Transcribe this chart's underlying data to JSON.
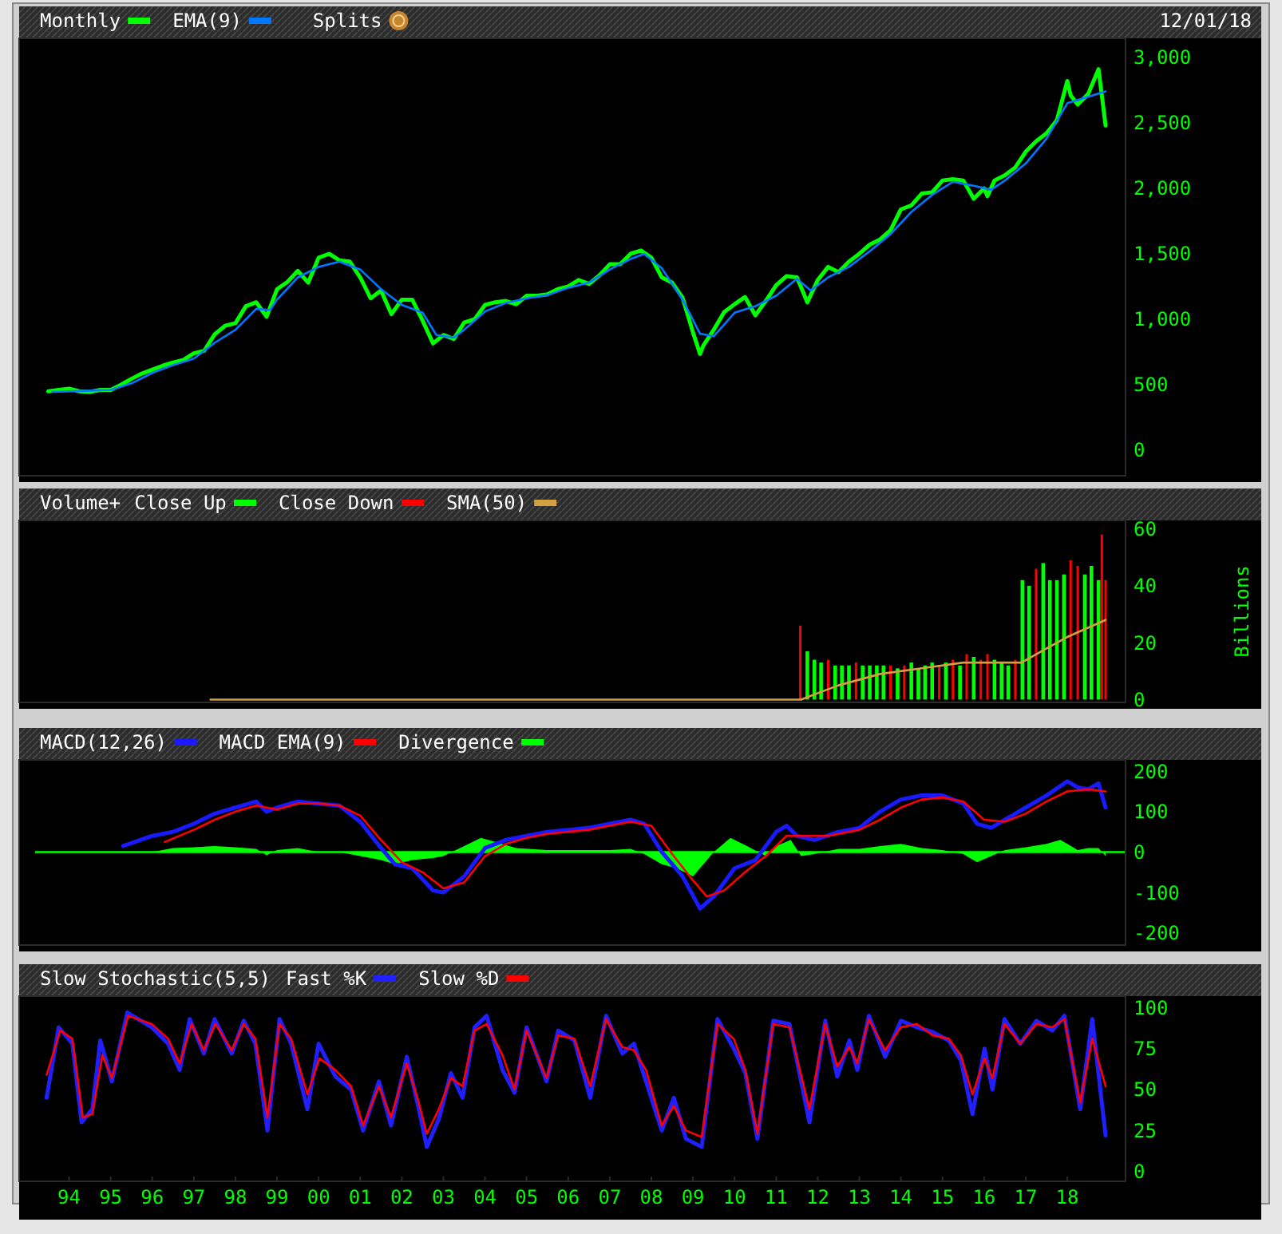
{
  "chart_data": [
    {
      "type": "line",
      "subtitle": "12/01/18",
      "annotations": [
        "Splits"
      ],
      "legend": "top left",
      "tick_labels": "y",
      "xlim": [
        1992.8,
        2019.4
      ],
      "ylim": [
        -195,
        3146
      ],
      "yticks": [
        0,
        500,
        {
          "value": 1000,
          "label": "1,000"
        },
        {
          "value": 1500,
          "label": "1,500"
        },
        {
          "value": 2000,
          "label": "2,000"
        },
        {
          "value": 2500,
          "label": "2,500"
        },
        {
          "value": 3000,
          "label": "3,000"
        }
      ],
      "series": [
        {
          "name": "Monthly",
          "color": "#00ff00",
          "x": [
            1993.5,
            1993.75,
            1994,
            1994.25,
            1994.5,
            1994.75,
            1995,
            1995.25,
            1995.5,
            1995.75,
            1996,
            1996.25,
            1996.5,
            1996.75,
            1997,
            1997.25,
            1997.5,
            1997.75,
            1998,
            1998.25,
            1998.5,
            1998.75,
            1999,
            1999.25,
            1999.5,
            1999.75,
            2000,
            2000.25,
            2000.5,
            2000.75,
            2001,
            2001.25,
            2001.5,
            2001.75,
            2002,
            2002.25,
            2002.5,
            2002.75,
            2003,
            2003.25,
            2003.5,
            2003.75,
            2004,
            2004.25,
            2004.5,
            2004.75,
            2005,
            2005.25,
            2005.5,
            2005.75,
            2006,
            2006.25,
            2006.5,
            2006.75,
            2007,
            2007.25,
            2007.5,
            2007.75,
            2008,
            2008.25,
            2008.5,
            2008.75,
            2009,
            2009.17,
            2009.25,
            2009.5,
            2009.75,
            2010,
            2010.25,
            2010.5,
            2010.75,
            2011,
            2011.25,
            2011.5,
            2011.75,
            2012,
            2012.25,
            2012.5,
            2012.75,
            2013,
            2013.25,
            2013.5,
            2013.75,
            2014,
            2014.25,
            2014.5,
            2014.75,
            2015,
            2015.25,
            2015.5,
            2015.75,
            2016,
            2016.08,
            2016.25,
            2016.5,
            2016.75,
            2017,
            2017.25,
            2017.5,
            2017.75,
            2018,
            2018.08,
            2018.25,
            2018.5,
            2018.75,
            2018.83,
            2018.92
          ],
          "values": [
            450,
            460,
            470,
            450,
            445,
            460,
            460,
            500,
            545,
            585,
            615,
            645,
            670,
            690,
            740,
            760,
            885,
            950,
            970,
            1100,
            1130,
            1020,
            1230,
            1285,
            1370,
            1280,
            1470,
            1500,
            1450,
            1440,
            1320,
            1160,
            1220,
            1040,
            1150,
            1150,
            990,
            815,
            880,
            850,
            975,
            1000,
            1110,
            1130,
            1140,
            1115,
            1180,
            1180,
            1190,
            1230,
            1250,
            1300,
            1270,
            1335,
            1420,
            1420,
            1500,
            1525,
            1470,
            1320,
            1280,
            1165,
            900,
            735,
            800,
            920,
            1055,
            1115,
            1170,
            1030,
            1140,
            1260,
            1330,
            1320,
            1130,
            1300,
            1400,
            1360,
            1440,
            1500,
            1570,
            1610,
            1680,
            1840,
            1870,
            1960,
            1970,
            2060,
            2070,
            2060,
            1920,
            2000,
            1940,
            2060,
            2100,
            2160,
            2280,
            2360,
            2420,
            2520,
            2820,
            2710,
            2640,
            2720,
            2910,
            2710,
            2480
          ]
        },
        {
          "name": "EMA(9)",
          "color": "#0077ff",
          "x": [
            1993.6,
            1994.5,
            1995,
            1995.5,
            1996,
            1996.5,
            1997,
            1997.5,
            1998,
            1998.5,
            1998.83,
            1999,
            1999.5,
            2000,
            2000.5,
            2001,
            2001.5,
            2002,
            2002.5,
            2002.83,
            2003.25,
            2003.5,
            2004,
            2004.5,
            2005,
            2005.5,
            2006,
            2006.5,
            2007,
            2007.5,
            2007.83,
            2008.25,
            2008.75,
            2009.17,
            2009.5,
            2010,
            2010.5,
            2011,
            2011.5,
            2011.83,
            2012.25,
            2012.75,
            2013.25,
            2013.75,
            2014.25,
            2014.75,
            2015.25,
            2015.75,
            2016.17,
            2016.5,
            2017,
            2017.5,
            2018,
            2018.5,
            2018.92
          ],
          "values": [
            445,
            455,
            460,
            510,
            590,
            650,
            700,
            820,
            920,
            1080,
            1070,
            1150,
            1320,
            1400,
            1440,
            1380,
            1230,
            1110,
            1050,
            880,
            860,
            920,
            1060,
            1125,
            1160,
            1185,
            1240,
            1280,
            1380,
            1460,
            1500,
            1390,
            1150,
            890,
            870,
            1050,
            1100,
            1180,
            1310,
            1220,
            1320,
            1400,
            1520,
            1650,
            1820,
            1950,
            2050,
            2020,
            1990,
            2060,
            2190,
            2380,
            2650,
            2700,
            2740
          ]
        }
      ]
    },
    {
      "type": "bar",
      "title": "Volume+",
      "ylabel": "Billions",
      "legend": "top left",
      "tick_labels": "y",
      "xlim": [
        1992.8,
        2019.4
      ],
      "ylim": [
        -1,
        63
      ],
      "yticks": [
        0,
        20,
        40,
        60
      ],
      "series": [
        {
          "name": "Close Up",
          "color": "#00ff00",
          "x": [
            2011.75,
            2011.92,
            2012.08,
            2012.42,
            2012.58,
            2012.75,
            2013.08,
            2013.25,
            2013.42,
            2013.58,
            2013.92,
            2014.25,
            2014.42,
            2014.58,
            2014.75,
            2015.08,
            2015.42,
            2015.75,
            2016.25,
            2016.42,
            2016.58,
            2016.92,
            2017.08,
            2017.42,
            2017.58,
            2017.75,
            2017.92,
            2018.42,
            2018.58,
            2018.75
          ],
          "values": [
            17,
            14,
            13,
            12,
            12,
            12,
            12,
            12,
            12,
            12,
            11,
            13,
            11,
            12,
            13,
            13,
            12,
            15,
            14,
            13,
            12,
            42,
            40,
            48,
            42,
            42,
            44,
            44,
            47,
            42
          ]
        },
        {
          "name": "Close Down",
          "color": "#ff0000",
          "x": [
            2011.58,
            2012.25,
            2012.92,
            2013.75,
            2014.08,
            2014.92,
            2015.25,
            2015.58,
            2015.92,
            2016.08,
            2016.75,
            2017.25,
            2018.08,
            2018.25,
            2018.83,
            2018.92
          ],
          "values": [
            26,
            14,
            13,
            12,
            12,
            12,
            14,
            16,
            14,
            16,
            14,
            46,
            49,
            47,
            58,
            42
          ]
        },
        {
          "name": "SMA(50)",
          "type": "line",
          "color": "#d4a040",
          "x": [
            1997.4,
            2011.6,
            2012.5,
            2013.5,
            2014.5,
            2015.5,
            2016.9,
            2017.5,
            2018,
            2018.92
          ],
          "values": [
            0,
            0,
            5,
            9,
            11,
            13,
            13,
            18,
            22,
            28
          ]
        }
      ]
    },
    {
      "type": "line",
      "legend": "top left",
      "tick_labels": "y",
      "xlim": [
        1992.8,
        2019.4
      ],
      "ylim": [
        -230,
        228
      ],
      "yticks": [
        -200,
        -100,
        0,
        100,
        200
      ],
      "ref_lines": [
        {
          "axis": "y",
          "value": 0,
          "color": "#00ff00"
        }
      ],
      "series": [
        {
          "name": "MACD(12,26)",
          "color": "#1a1aff",
          "x": [
            1995.3,
            1996,
            1996.5,
            1997,
            1997.5,
            1998,
            1998.5,
            1998.75,
            1999,
            1999.5,
            2000,
            2000.5,
            2001,
            2001.5,
            2001.83,
            2002.25,
            2002.75,
            2003,
            2003.5,
            2004,
            2004.5,
            2005,
            2005.5,
            2006,
            2006.5,
            2007,
            2007.5,
            2007.83,
            2008.25,
            2008.75,
            2009.17,
            2009.5,
            2010,
            2010.5,
            2011,
            2011.25,
            2011.5,
            2011.92,
            2012.5,
            2013,
            2013.5,
            2014,
            2014.5,
            2015,
            2015.5,
            2015.83,
            2016.17,
            2016.5,
            2017,
            2017.5,
            2018,
            2018.25,
            2018.5,
            2018.75,
            2018.92
          ],
          "values": [
            15,
            40,
            50,
            70,
            95,
            110,
            125,
            100,
            110,
            125,
            120,
            115,
            75,
            10,
            -30,
            -40,
            -95,
            -100,
            -60,
            10,
            30,
            40,
            50,
            55,
            60,
            70,
            80,
            70,
            0,
            -60,
            -140,
            -110,
            -40,
            -20,
            50,
            65,
            40,
            30,
            50,
            60,
            100,
            130,
            140,
            140,
            120,
            70,
            60,
            80,
            110,
            140,
            175,
            160,
            155,
            170,
            110
          ]
        },
        {
          "name": "MACD EMA(9)",
          "color": "#ff0000",
          "x": [
            1996.3,
            1997,
            1997.5,
            1998,
            1998.5,
            1999,
            1999.5,
            2000,
            2000.5,
            2001,
            2001.5,
            2002,
            2002.5,
            2003,
            2003.5,
            2004,
            2004.5,
            2005,
            2005.5,
            2006,
            2006.5,
            2007,
            2007.5,
            2008,
            2008.5,
            2009,
            2009.33,
            2009.75,
            2010.25,
            2010.75,
            2011.25,
            2011.75,
            2012.25,
            2013,
            2013.5,
            2014,
            2014.5,
            2015,
            2015.5,
            2016,
            2016.5,
            2017,
            2017.5,
            2018,
            2018.5,
            2018.92
          ],
          "values": [
            25,
            55,
            80,
            100,
            115,
            105,
            120,
            120,
            115,
            90,
            30,
            -25,
            -50,
            -90,
            -75,
            -10,
            20,
            35,
            45,
            50,
            55,
            65,
            75,
            65,
            -5,
            -70,
            -110,
            -95,
            -50,
            -10,
            40,
            40,
            40,
            55,
            80,
            110,
            130,
            135,
            125,
            80,
            75,
            95,
            125,
            150,
            155,
            150
          ]
        },
        {
          "name": "Divergence",
          "type": "area",
          "color": "#00ff00",
          "x": [
            1996,
            1996.5,
            1997,
            1997.5,
            1998,
            1998.5,
            1998.75,
            1999,
            1999.5,
            2000,
            2000.5,
            2001,
            2001.5,
            2001.83,
            2002.25,
            2002.75,
            2003,
            2003.5,
            2003.9,
            2004.25,
            2004.75,
            2005.5,
            2006,
            2006.5,
            2007,
            2007.5,
            2007.83,
            2008.25,
            2008.6,
            2009,
            2009.25,
            2009.5,
            2009.9,
            2010.3,
            2010.75,
            2011,
            2011.35,
            2011.6,
            2011.92,
            2012.5,
            2013,
            2013.5,
            2014,
            2014.5,
            2015,
            2015.5,
            2015.83,
            2016.17,
            2016.5,
            2017,
            2017.5,
            2017.83,
            2018,
            2018.25,
            2018.5,
            2018.75,
            2018.92
          ],
          "values": [
            0,
            10,
            12,
            15,
            12,
            8,
            -8,
            5,
            10,
            0,
            0,
            -10,
            -20,
            -30,
            -20,
            -15,
            -10,
            15,
            35,
            25,
            10,
            5,
            5,
            5,
            5,
            8,
            -5,
            -30,
            -40,
            -60,
            -30,
            0,
            35,
            15,
            -10,
            15,
            30,
            -10,
            -5,
            8,
            8,
            15,
            20,
            10,
            5,
            -5,
            -25,
            -10,
            5,
            12,
            20,
            30,
            20,
            5,
            10,
            10,
            -10
          ]
        }
      ]
    },
    {
      "type": "line",
      "title": "Slow Stochastic(5,5)",
      "legend": "top left",
      "xlim": [
        1992.8,
        2019.4
      ],
      "xticks": [
        {
          "value": 1994,
          "label": "94"
        },
        {
          "value": 1995,
          "label": "95"
        },
        {
          "value": 1996,
          "label": "96"
        },
        {
          "value": 1997,
          "label": "97"
        },
        {
          "value": 1998,
          "label": "98"
        },
        {
          "value": 1999,
          "label": "99"
        },
        {
          "value": 2000,
          "label": "00"
        },
        {
          "value": 2001,
          "label": "01"
        },
        {
          "value": 2002,
          "label": "02"
        },
        {
          "value": 2003,
          "label": "03"
        },
        {
          "value": 2004,
          "label": "04"
        },
        {
          "value": 2005,
          "label": "05"
        },
        {
          "value": 2006,
          "label": "06"
        },
        {
          "value": 2007,
          "label": "07"
        },
        {
          "value": 2008,
          "label": "08"
        },
        {
          "value": 2009,
          "label": "09"
        },
        {
          "value": 2010,
          "label": "10"
        },
        {
          "value": 2011,
          "label": "11"
        },
        {
          "value": 2012,
          "label": "12"
        },
        {
          "value": 2013,
          "label": "13"
        },
        {
          "value": 2014,
          "label": "14"
        },
        {
          "value": 2015,
          "label": "15"
        },
        {
          "value": 2016,
          "label": "16"
        },
        {
          "value": 2017,
          "label": "17"
        },
        {
          "value": 2018,
          "label": "18"
        }
      ],
      "ylim": [
        -6,
        107
      ],
      "yticks": [
        0,
        25,
        50,
        75,
        100
      ],
      "series": [
        {
          "name": "Fast %K",
          "color": "#2020ff",
          "x": [
            1993.46,
            1993.75,
            1994.08,
            1994.3,
            1994.56,
            1994.75,
            1995.03,
            1995.4,
            1995.99,
            1996.38,
            1996.66,
            1996.9,
            1997.24,
            1997.5,
            1997.91,
            1998.2,
            1998.48,
            1998.77,
            1999.06,
            1999.34,
            1999.73,
            2000,
            2000.4,
            2000.78,
            2001.07,
            2001.45,
            2001.74,
            2002.12,
            2002.41,
            2002.6,
            2002.89,
            2003.18,
            2003.46,
            2003.75,
            2004.04,
            2004.42,
            2004.71,
            2005,
            2005.48,
            2005.76,
            2006.15,
            2006.53,
            2006.91,
            2007.3,
            2007.58,
            2007.87,
            2008.25,
            2008.54,
            2008.83,
            2009.21,
            2009.59,
            2009.98,
            2010.26,
            2010.55,
            2010.93,
            2011.32,
            2011.8,
            2012.18,
            2012.47,
            2012.76,
            2012.95,
            2013.23,
            2013.62,
            2014,
            2014.38,
            2014.77,
            2015.15,
            2015.44,
            2015.72,
            2016.01,
            2016.2,
            2016.49,
            2016.87,
            2017.26,
            2017.64,
            2017.93,
            2018.31,
            2018.6,
            2018.92
          ],
          "values": [
            45,
            88,
            78,
            30,
            38,
            80,
            55,
            97,
            88,
            78,
            62,
            93,
            72,
            93,
            72,
            92,
            78,
            25,
            93,
            78,
            38,
            78,
            58,
            50,
            25,
            55,
            28,
            70,
            38,
            15,
            32,
            60,
            45,
            88,
            95,
            62,
            48,
            88,
            55,
            86,
            80,
            45,
            95,
            72,
            78,
            55,
            25,
            45,
            20,
            15,
            93,
            75,
            60,
            20,
            92,
            90,
            30,
            92,
            58,
            80,
            62,
            95,
            70,
            92,
            88,
            85,
            80,
            68,
            35,
            75,
            50,
            93,
            78,
            92,
            86,
            95,
            38,
            93,
            22
          ]
        },
        {
          "name": "Slow %D",
          "color": "#ff0000",
          "x": [
            1993.46,
            1993.79,
            1994.08,
            1994.33,
            1994.56,
            1994.8,
            1995.03,
            1995.42,
            1995.99,
            1996.38,
            1996.66,
            1996.95,
            1997.24,
            1997.52,
            1997.91,
            1998.2,
            1998.48,
            1998.77,
            1999.06,
            1999.34,
            1999.73,
            2000.02,
            2000.4,
            2000.78,
            2001.07,
            2001.45,
            2001.74,
            2002.12,
            2002.41,
            2002.6,
            2002.89,
            2003.18,
            2003.46,
            2003.75,
            2004.04,
            2004.42,
            2004.71,
            2005,
            2005.48,
            2005.76,
            2006.15,
            2006.53,
            2006.91,
            2007.3,
            2007.58,
            2007.87,
            2008.25,
            2008.54,
            2008.83,
            2009.21,
            2009.59,
            2009.98,
            2010.26,
            2010.55,
            2010.93,
            2011.32,
            2011.8,
            2012.18,
            2012.47,
            2012.76,
            2012.95,
            2013.23,
            2013.62,
            2014,
            2014.38,
            2014.77,
            2015.15,
            2015.44,
            2015.72,
            2016.01,
            2016.2,
            2016.49,
            2016.87,
            2017.26,
            2017.64,
            2017.93,
            2018.31,
            2018.6,
            2018.92
          ],
          "values": [
            59,
            86,
            81,
            33,
            35,
            71,
            57,
            95,
            90,
            81,
            66,
            90,
            74,
            90,
            74,
            90,
            81,
            33,
            90,
            81,
            47,
            69,
            62,
            52,
            28,
            52,
            33,
            66,
            42,
            23,
            38,
            57,
            52,
            86,
            90,
            71,
            50,
            86,
            57,
            83,
            81,
            52,
            93,
            76,
            74,
            62,
            28,
            40,
            25,
            21,
            90,
            81,
            62,
            23,
            90,
            88,
            38,
            90,
            64,
            76,
            66,
            93,
            74,
            88,
            90,
            83,
            81,
            71,
            47,
            69,
            57,
            90,
            78,
            90,
            88,
            93,
            42,
            81,
            52
          ]
        }
      ]
    }
  ]
}
